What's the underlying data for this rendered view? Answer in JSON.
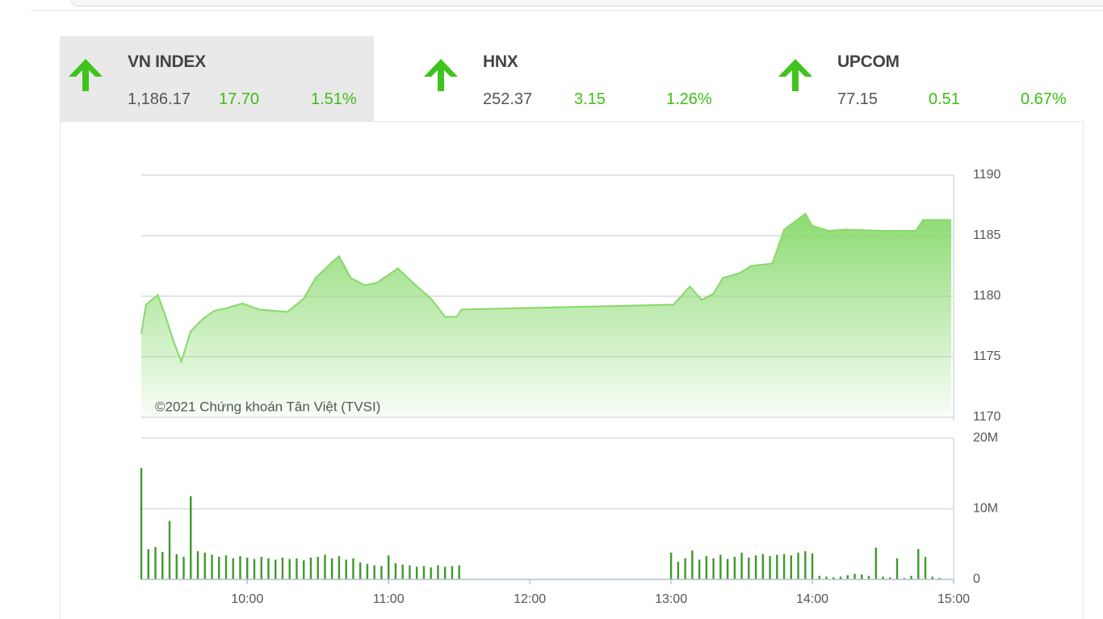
{
  "indices": [
    {
      "name": "VN INDEX",
      "value": "1,186.17",
      "change": "17.70",
      "percent": "1.51%"
    },
    {
      "name": "HNX",
      "value": "252.37",
      "change": "3.15",
      "percent": "1.26%"
    },
    {
      "name": "UPCOM",
      "value": "77.15",
      "change": "0.51",
      "percent": "0.67%"
    }
  ],
  "chart_data": [
    {
      "type": "area",
      "color": "#86d96a",
      "annotation": "©2021 Chứng khoán Tân Việt (TVSI)",
      "x": [
        555,
        557,
        562,
        565,
        569,
        572,
        576,
        581,
        586,
        591,
        598,
        605,
        617,
        624,
        629,
        636,
        639,
        644,
        650,
        655,
        664,
        671,
        678,
        684,
        689,
        691,
        781,
        788,
        793,
        798,
        802,
        809,
        814,
        823,
        828,
        837,
        840,
        847,
        854,
        870,
        884,
        887,
        899
      ],
      "values": [
        1176.9,
        1179.3,
        1180.1,
        1178.5,
        1176.1,
        1174.6,
        1177.1,
        1178.1,
        1178.8,
        1179.0,
        1179.4,
        1178.9,
        1178.7,
        1179.8,
        1181.5,
        1182.8,
        1183.3,
        1181.5,
        1180.9,
        1181.1,
        1182.3,
        1181.0,
        1179.8,
        1178.3,
        1178.3,
        1178.9,
        1179.3,
        1180.8,
        1179.7,
        1180.2,
        1181.5,
        1181.9,
        1182.5,
        1182.7,
        1185.5,
        1186.8,
        1185.8,
        1185.4,
        1185.5,
        1185.4,
        1185.4,
        1186.3,
        1186.3
      ],
      "xlim": [
        555,
        900
      ],
      "ylim": [
        1170,
        1190
      ],
      "yticks": [
        1170,
        1175,
        1180,
        1185,
        1190
      ],
      "grid": true
    },
    {
      "type": "bar",
      "color": "#3e9a2a",
      "x": [
        555,
        558,
        561,
        564,
        567,
        570,
        573,
        576,
        579,
        582,
        585,
        588,
        591,
        594,
        597,
        600,
        603,
        606,
        609,
        612,
        615,
        618,
        621,
        624,
        627,
        630,
        633,
        636,
        639,
        642,
        645,
        648,
        651,
        654,
        657,
        660,
        663,
        666,
        669,
        672,
        675,
        678,
        681,
        684,
        687,
        690,
        780,
        783,
        786,
        789,
        792,
        795,
        798,
        801,
        804,
        807,
        810,
        813,
        816,
        819,
        822,
        825,
        828,
        831,
        834,
        837,
        840,
        843,
        846,
        849,
        852,
        855,
        858,
        861,
        864,
        867,
        870,
        873,
        876,
        879,
        882,
        885,
        888,
        891,
        894
      ],
      "values": [
        15.8,
        4.3,
        4.6,
        3.9,
        8.3,
        3.6,
        3.2,
        11.8,
        4.0,
        3.8,
        3.5,
        3.2,
        3.4,
        3.0,
        3.3,
        3.1,
        2.9,
        3.2,
        3.0,
        2.8,
        3.1,
        2.9,
        3.0,
        2.7,
        3.1,
        3.2,
        3.5,
        3.0,
        3.3,
        2.8,
        3.0,
        2.4,
        2.2,
        2.0,
        1.9,
        3.4,
        2.3,
        2.1,
        2.0,
        1.8,
        1.9,
        1.7,
        2.0,
        1.8,
        1.9,
        2.0,
        3.8,
        2.5,
        3.0,
        4.1,
        2.8,
        3.3,
        3.0,
        3.5,
        2.9,
        3.2,
        3.8,
        3.1,
        3.4,
        3.6,
        3.3,
        3.5,
        3.6,
        3.4,
        3.8,
        4.0,
        3.7,
        0.5,
        0.4,
        0.3,
        0.4,
        0.6,
        0.8,
        0.7,
        0.5,
        4.5,
        0.4,
        0.3,
        3.0,
        0.2,
        0.5,
        4.3,
        3.2,
        0.4,
        0.2
      ],
      "xlim": [
        555,
        900
      ],
      "ylim": [
        0,
        20
      ],
      "yticks": [
        0,
        {
          "value": 10,
          "label": "10M"
        },
        {
          "value": 20,
          "label": "20M"
        }
      ],
      "xticks": [
        {
          "value": 600,
          "label": "10:00"
        },
        {
          "value": 660,
          "label": "11:00"
        },
        {
          "value": 720,
          "label": "12:00"
        },
        {
          "value": 780,
          "label": "13:00"
        },
        {
          "value": 840,
          "label": "14:00"
        },
        {
          "value": 900,
          "label": "15:00"
        }
      ],
      "grid": true
    }
  ]
}
